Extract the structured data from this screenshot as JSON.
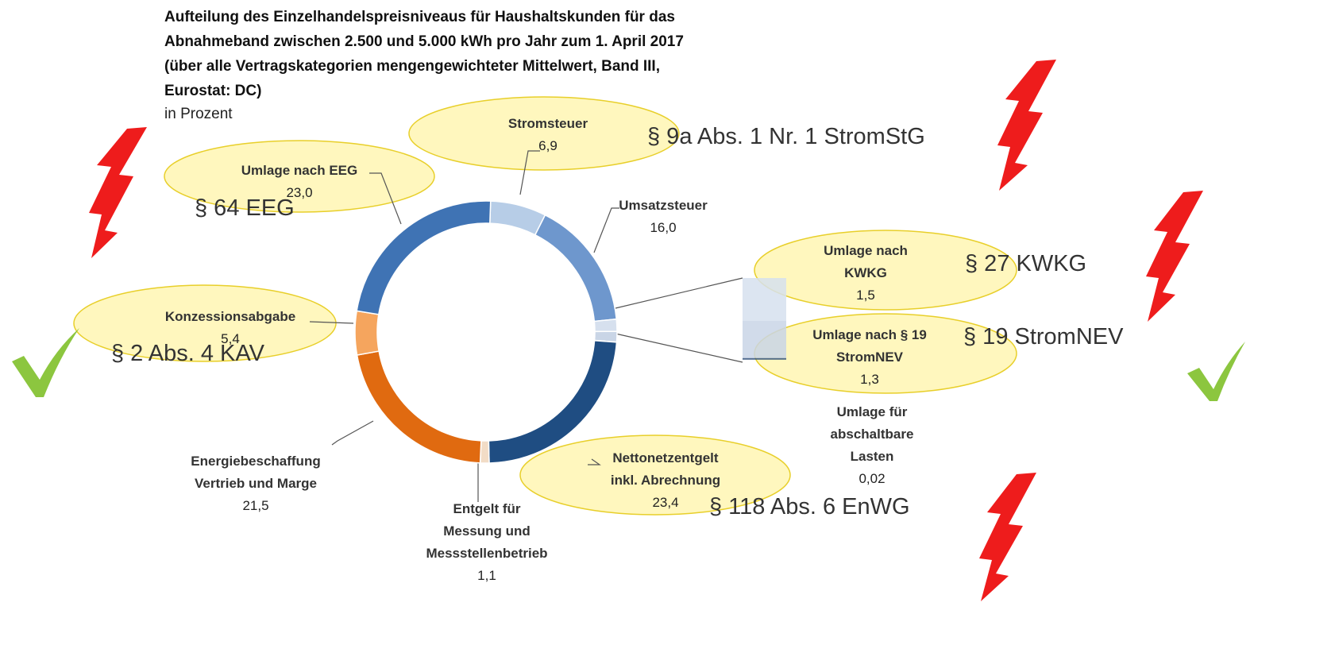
{
  "chart_data": {
    "type": "pie",
    "title": "Aufteilung des Einzelhandelspreisniveaus für Haushaltskunden für das\nAbnahmeband zwischen 2.500 und 5.000 kWh  pro Jahr  zum 1. April 2017\n(über alle Vertragskategorien mengengewichteter Mittelwert, Band III,\nEurostat: DC)",
    "subtitle": "in Prozent",
    "categories": [
      "Stromsteuer",
      "Umsatzsteuer",
      "Umlage nach\nKWKG",
      "Umlage nach § 19\nStromNEV",
      "Umlage für\nabschaltbare\nLasten",
      "Nettonetzentgelt\ninkl. Abrechnung",
      "Entgelt für\nMessung und\nMessstellenbetrieb",
      "Energiebeschaffung\nVertrieb und Marge",
      "Konzessionsabgabe",
      "Umlage nach EEG"
    ],
    "values": [
      6.9,
      16.0,
      1.5,
      1.3,
      0.02,
      23.4,
      1.1,
      21.5,
      5.4,
      23.0
    ],
    "value_labels": [
      "6,9",
      "16,0",
      "1,5",
      "1,3",
      "0,02",
      "23,4",
      "1,1",
      "21,5",
      "5,4",
      "23,0"
    ],
    "colors": [
      "#b7cde7",
      "#6e97cd",
      "#d6e0ee",
      "#c9d5e6",
      "#33547e",
      "#1f4d82",
      "#f2dcc6",
      "#e06a10",
      "#f5a55e",
      "#3f73b4"
    ],
    "annotations": [
      "§ 9a Abs. 1 Nr. 1 StromStG",
      "§ 64 EEG",
      "§ 27 KWKG",
      "§ 19 StromNEV",
      "§ 2 Abs. 4 KAV",
      "§ 118 Abs. 6 EnWG"
    ]
  }
}
